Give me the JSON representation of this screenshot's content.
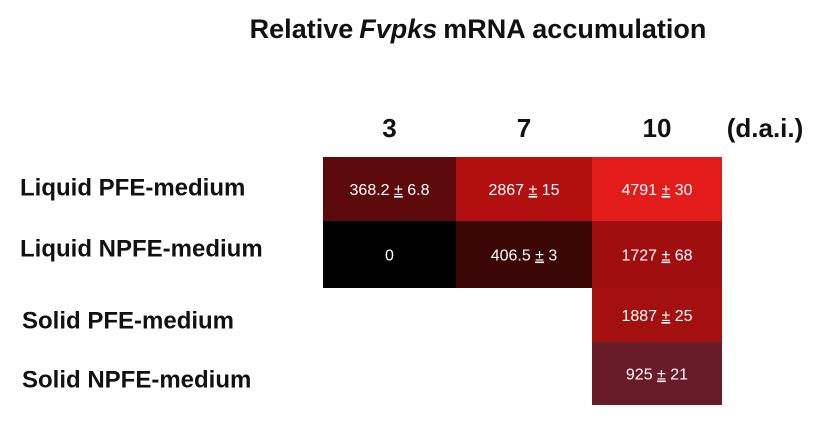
{
  "chart_data": {
    "type": "heatmap",
    "title_parts": [
      "Relative",
      "Fvpks",
      "mRNA accumulation"
    ],
    "x_label": "(d.a.i.)",
    "categories": [
      "3",
      "7",
      "10"
    ],
    "rows": [
      "Liquid PFE-medium",
      "Liquid NPFE-medium",
      "Solid PFE-medium",
      "Solid NPFE-medium"
    ],
    "values": [
      [
        368.2,
        2867,
        4791
      ],
      [
        0,
        406.5,
        1727
      ],
      [
        null,
        null,
        1887
      ],
      [
        null,
        null,
        925
      ]
    ],
    "errors": [
      [
        6.8,
        15,
        30
      ],
      [
        null,
        3,
        68
      ],
      [
        null,
        null,
        25
      ],
      [
        null,
        null,
        21
      ]
    ],
    "value_labels": [
      [
        "368.2 ± 6.8",
        "2867 ± 15",
        "4791 ± 30"
      ],
      [
        "0",
        "406.5 ± 3",
        "1727 ± 68"
      ],
      [
        null,
        null,
        "1887 ± 25"
      ],
      [
        null,
        null,
        "925 ± 21"
      ]
    ],
    "colors": [
      [
        "#5c0a0b",
        "#b10f10",
        "#e41b1b"
      ],
      [
        "#000000",
        "#3b0606",
        "#a00e0f"
      ],
      [
        null,
        null,
        "#a3100f"
      ],
      [
        null,
        null,
        "#6a1b29"
      ]
    ]
  }
}
